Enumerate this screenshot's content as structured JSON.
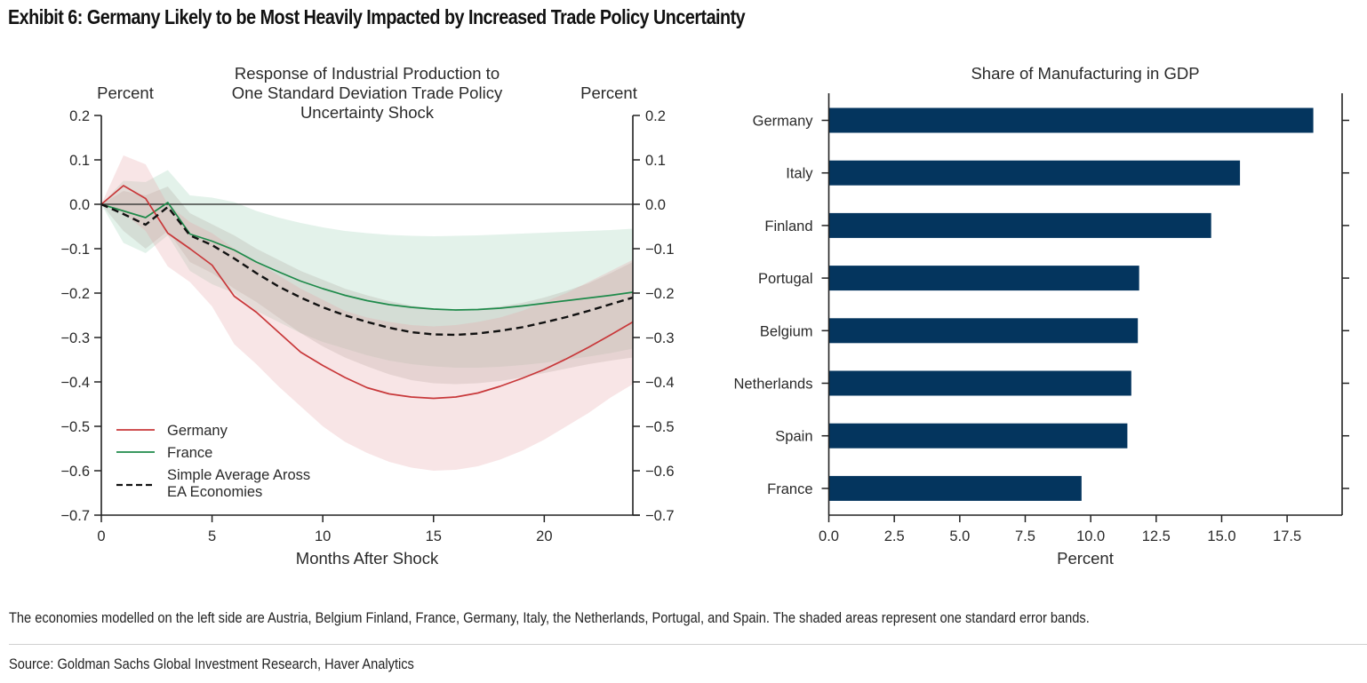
{
  "exhibit_title": "Exhibit 6: Germany Likely to be Most Heavily Impacted by Increased Trade Policy Uncertainty",
  "note": "The economies modelled on the left side are Austria, Belgium Finland, France, Germany, Italy, the Netherlands, Portugal, and Spain. The shaded areas represent one standard error bands.",
  "source": "Source: Goldman Sachs Global Investment Research, Haver Analytics",
  "chart_data": [
    {
      "type": "line",
      "title_lines": [
        "Response of Industrial Production to",
        "One Standard Deviation Trade Policy",
        "Uncertainty Shock"
      ],
      "xlabel": "Months After Shock",
      "ylabel_left": "Percent",
      "ylabel_right": "Percent",
      "xlim": [
        0,
        24
      ],
      "ylim": [
        -0.7,
        0.2
      ],
      "xticks": [
        0,
        5,
        10,
        15,
        20
      ],
      "yticks": [
        0.2,
        0.1,
        0.0,
        -0.1,
        -0.2,
        -0.3,
        -0.4,
        -0.5,
        -0.6,
        -0.7
      ],
      "ytick_labels": [
        "0.2",
        "0.1",
        "0.0",
        "−0.1",
        "−0.2",
        "−0.3",
        "−0.4",
        "−0.5",
        "−0.6",
        "−0.7"
      ],
      "zero_line": true,
      "grid": false,
      "legend_position": "lower-left",
      "x": [
        0,
        1,
        2,
        3,
        4,
        5,
        6,
        7,
        8,
        9,
        10,
        11,
        12,
        13,
        14,
        15,
        16,
        17,
        18,
        19,
        20,
        21,
        22,
        23,
        24
      ],
      "series": [
        {
          "name": "Germany",
          "color": "#c8383a",
          "style": "solid",
          "values": [
            0.0,
            0.042,
            0.013,
            -0.065,
            -0.1,
            -0.137,
            -0.207,
            -0.243,
            -0.288,
            -0.333,
            -0.363,
            -0.39,
            -0.413,
            -0.427,
            -0.434,
            -0.437,
            -0.434,
            -0.425,
            -0.41,
            -0.392,
            -0.372,
            -0.348,
            -0.322,
            -0.294,
            -0.265
          ],
          "band_upper": [
            0.0,
            0.11,
            0.09,
            0.0,
            -0.04,
            -0.065,
            -0.1,
            -0.13,
            -0.16,
            -0.19,
            -0.215,
            -0.24,
            -0.255,
            -0.265,
            -0.272,
            -0.275,
            -0.272,
            -0.265,
            -0.255,
            -0.24,
            -0.22,
            -0.2,
            -0.175,
            -0.15,
            -0.125
          ],
          "band_lower": [
            0.0,
            -0.02,
            -0.06,
            -0.14,
            -0.175,
            -0.23,
            -0.315,
            -0.36,
            -0.41,
            -0.455,
            -0.5,
            -0.535,
            -0.56,
            -0.58,
            -0.593,
            -0.6,
            -0.598,
            -0.59,
            -0.575,
            -0.555,
            -0.53,
            -0.5,
            -0.47,
            -0.435,
            -0.405
          ],
          "band_color": "#e7a3a5"
        },
        {
          "name": "France",
          "color": "#1e8a4a",
          "style": "solid",
          "values": [
            0.0,
            -0.015,
            -0.03,
            0.004,
            -0.067,
            -0.083,
            -0.103,
            -0.13,
            -0.152,
            -0.173,
            -0.19,
            -0.205,
            -0.217,
            -0.226,
            -0.232,
            -0.236,
            -0.238,
            -0.237,
            -0.234,
            -0.229,
            -0.223,
            -0.217,
            -0.211,
            -0.205,
            -0.198
          ],
          "band_upper": [
            0.0,
            0.053,
            0.05,
            0.077,
            0.02,
            0.015,
            0.005,
            -0.015,
            -0.03,
            -0.042,
            -0.052,
            -0.06,
            -0.065,
            -0.069,
            -0.071,
            -0.072,
            -0.071,
            -0.07,
            -0.068,
            -0.066,
            -0.064,
            -0.062,
            -0.06,
            -0.058,
            -0.055
          ],
          "band_lower": [
            0.0,
            -0.087,
            -0.11,
            -0.07,
            -0.15,
            -0.18,
            -0.2,
            -0.24,
            -0.265,
            -0.29,
            -0.31,
            -0.325,
            -0.34,
            -0.352,
            -0.36,
            -0.365,
            -0.368,
            -0.368,
            -0.366,
            -0.362,
            -0.357,
            -0.35,
            -0.343,
            -0.335,
            -0.325
          ],
          "band_color": "#a9d6bf"
        },
        {
          "name": "Simple Average Aross EA Economies",
          "color": "#111111",
          "style": "dashed",
          "values": [
            0.0,
            -0.022,
            -0.046,
            -0.006,
            -0.07,
            -0.092,
            -0.122,
            -0.155,
            -0.185,
            -0.21,
            -0.232,
            -0.25,
            -0.265,
            -0.278,
            -0.288,
            -0.293,
            -0.294,
            -0.291,
            -0.285,
            -0.277,
            -0.266,
            -0.254,
            -0.24,
            -0.225,
            -0.21
          ],
          "band_upper": [
            0.0,
            0.03,
            0.02,
            0.04,
            -0.02,
            -0.045,
            -0.07,
            -0.1,
            -0.125,
            -0.15,
            -0.17,
            -0.19,
            -0.205,
            -0.218,
            -0.228,
            -0.235,
            -0.237,
            -0.235,
            -0.23,
            -0.222,
            -0.21,
            -0.195,
            -0.178,
            -0.155,
            -0.13
          ],
          "band_lower": [
            0.0,
            -0.06,
            -0.1,
            -0.06,
            -0.13,
            -0.155,
            -0.19,
            -0.22,
            -0.255,
            -0.29,
            -0.32,
            -0.345,
            -0.365,
            -0.383,
            -0.396,
            -0.403,
            -0.405,
            -0.403,
            -0.398,
            -0.39,
            -0.38,
            -0.37,
            -0.36,
            -0.352,
            -0.345
          ],
          "band_color": "#b6b6ae"
        }
      ],
      "legend": [
        "Germany",
        "France",
        "Simple Average Aross",
        "EA Economies"
      ]
    },
    {
      "type": "bar",
      "orientation": "horizontal",
      "title": "Share of Manufacturing in GDP",
      "xlabel": "Percent",
      "ylabel": "",
      "xlim": [
        0,
        19.6
      ],
      "xticks": [
        0.0,
        2.5,
        5.0,
        7.5,
        10.0,
        12.5,
        15.0,
        17.5
      ],
      "xtick_labels": [
        "0.0",
        "2.5",
        "5.0",
        "7.5",
        "10.0",
        "12.5",
        "15.0",
        "17.5"
      ],
      "bar_color": "#04355e",
      "categories": [
        "Germany",
        "Italy",
        "Finland",
        "Portugal",
        "Belgium",
        "Netherlands",
        "Spain",
        "France"
      ],
      "values": [
        18.5,
        15.7,
        14.6,
        11.85,
        11.8,
        11.55,
        11.4,
        9.65
      ],
      "grid": false
    }
  ]
}
